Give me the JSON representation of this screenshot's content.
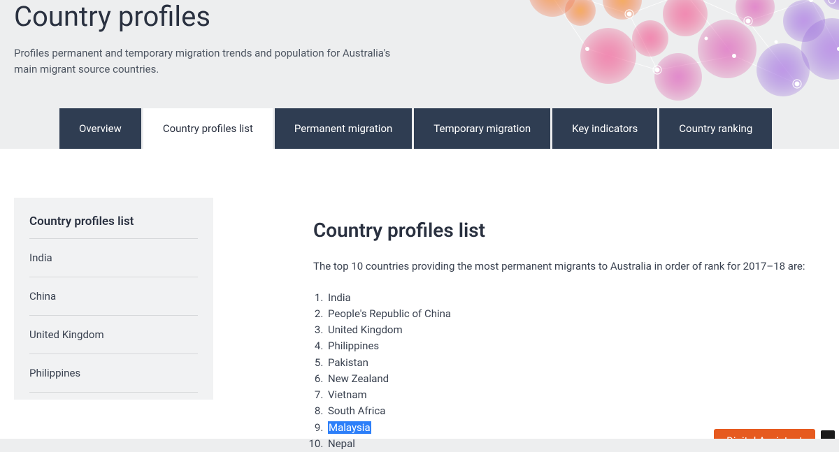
{
  "header": {
    "title": "Country profiles",
    "subtitle": "Profiles permanent and temporary migration trends and population for Australia's main migrant source countries."
  },
  "tabs": [
    {
      "label": "Overview",
      "active": false
    },
    {
      "label": "Country profiles list",
      "active": true
    },
    {
      "label": "Permanent migration",
      "active": false
    },
    {
      "label": "Temporary migration",
      "active": false
    },
    {
      "label": "Key indicators",
      "active": false
    },
    {
      "label": "Country ranking",
      "active": false
    }
  ],
  "sidebar": {
    "title": "Country profiles list",
    "items": [
      {
        "label": "India"
      },
      {
        "label": "China"
      },
      {
        "label": "United Kingdom"
      },
      {
        "label": "Philippines"
      }
    ]
  },
  "main": {
    "heading": "Country profiles list",
    "intro": "The top 10 countries providing the most permanent migrants to Australia in order of rank for 2017–18 are:",
    "ranked_countries": [
      {
        "label": "India",
        "highlighted": false
      },
      {
        "label": "People's Republic of China",
        "highlighted": false
      },
      {
        "label": "United Kingdom",
        "highlighted": false
      },
      {
        "label": "Philippines",
        "highlighted": false
      },
      {
        "label": "Pakistan",
        "highlighted": false
      },
      {
        "label": "New Zealand",
        "highlighted": false
      },
      {
        "label": "Vietnam",
        "highlighted": false
      },
      {
        "label": "South Africa",
        "highlighted": false
      },
      {
        "label": "Malaysia",
        "highlighted": true
      },
      {
        "label": "Nepal",
        "highlighted": false
      }
    ]
  },
  "cta": {
    "label": "Digital Assistant"
  },
  "colors": {
    "tab_bg": "#2f3d52",
    "tab_active_bg": "#ffffff",
    "page_bg": "#edeeef",
    "sidebar_bg": "#f1f2f3",
    "highlight_bg": "#2d7ff9",
    "cta_bg": "#e65a1f",
    "text_primary": "#2a3140",
    "text_body": "#3a4250"
  },
  "graphic": {
    "palette": [
      "#f05a28",
      "#f39a3e",
      "#ec3f7a",
      "#d94c9e",
      "#a64cc9",
      "#6f56d6",
      "#5a6fe0"
    ]
  }
}
